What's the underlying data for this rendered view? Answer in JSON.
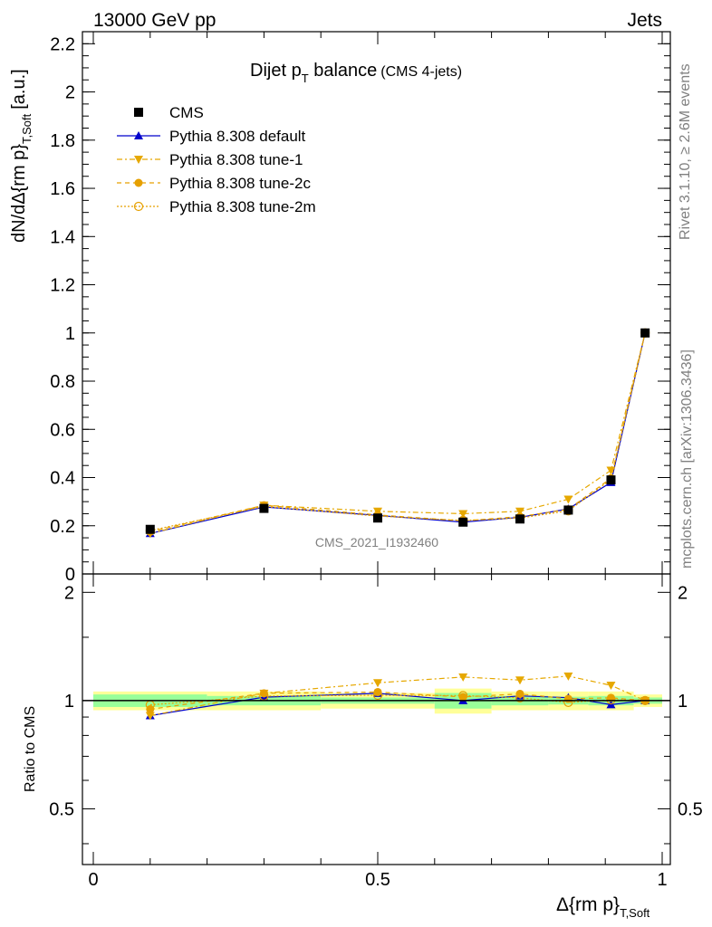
{
  "header": {
    "left": "13000 GeV pp",
    "right": "Jets",
    "side_top": "Rivet 3.1.10, ≥ 2.6M events",
    "side_bottom": "mcplots.cern.ch [arXiv:1306.3436]",
    "watermark": "CMS_2021_I1932460"
  },
  "chart_data": {
    "type": "line",
    "title_main": "Dijet p",
    "title_sub": "T",
    "title_rest": " balance",
    "title_note": "(CMS 4-jets)",
    "xlabel_main": "Δ{rm p}",
    "xlabel_sub": "T,Soft",
    "ylabel_main": "dN/dΔ{rm p}",
    "ylabel_sub": "T,Soft",
    "ylabel_unit": "[a.u.]",
    "ratio_ylabel": "Ratio to CMS",
    "xlim": [
      0,
      1
    ],
    "ylim": [
      0,
      2.25
    ],
    "ratio_ylim": [
      0.35,
      2.25
    ],
    "x_ticks": [
      0,
      0.5,
      1
    ],
    "x_tick_labels": [
      "0",
      "0.5",
      "1"
    ],
    "y_ticks": [
      0,
      0.2,
      0.4,
      0.6,
      0.8,
      1,
      1.2,
      1.4,
      1.6,
      1.8,
      2,
      2.2
    ],
    "y_tick_labels": [
      "0",
      "0.2",
      "0.4",
      "0.6",
      "0.8",
      "1",
      "1.2",
      "1.4",
      "1.6",
      "1.8",
      "2",
      "2.2"
    ],
    "ratio_ticks": [
      0.5,
      1,
      2
    ],
    "ratio_tick_labels": [
      "0.5",
      "1",
      "2"
    ],
    "legend_position": "top-left",
    "x": [
      0.1,
      0.3,
      0.5,
      0.65,
      0.75,
      0.835,
      0.91,
      0.97
    ],
    "bins": [
      [
        0,
        0.2
      ],
      [
        0.2,
        0.4
      ],
      [
        0.4,
        0.6
      ],
      [
        0.6,
        0.7
      ],
      [
        0.7,
        0.8
      ],
      [
        0.8,
        0.87
      ],
      [
        0.87,
        0.95
      ],
      [
        0.95,
        1.0
      ]
    ],
    "ratio_band_inner": [
      0.04,
      0.03,
      0.02,
      0.05,
      0.03,
      0.025,
      0.03,
      0.02
    ],
    "ratio_band_outer": [
      0.06,
      0.06,
      0.05,
      0.08,
      0.06,
      0.06,
      0.06,
      0.04
    ],
    "series": [
      {
        "name": "CMS",
        "color": "#000000",
        "marker": "square",
        "dash": "",
        "values": [
          0.185,
          0.272,
          0.232,
          0.215,
          0.228,
          0.265,
          0.39,
          1.0
        ]
      },
      {
        "name": "Pythia 8.308 default",
        "color": "#0000cc",
        "marker": "triangle-up",
        "dash": "",
        "values": [
          0.168,
          0.278,
          0.243,
          0.215,
          0.235,
          0.27,
          0.38,
          1.0
        ]
      },
      {
        "name": "Pythia 8.308 tune-1",
        "color": "#e6a800",
        "marker": "triangle-down",
        "dash": "6,3,2,3",
        "values": [
          0.168,
          0.285,
          0.26,
          0.25,
          0.26,
          0.31,
          0.43,
          1.0
        ]
      },
      {
        "name": "Pythia 8.308 tune-2c",
        "color": "#e6a000",
        "marker": "circle",
        "dash": "5,4",
        "values": [
          0.175,
          0.285,
          0.245,
          0.22,
          0.238,
          0.268,
          0.397,
          1.0
        ]
      },
      {
        "name": "Pythia 8.308 tune-2m",
        "color": "#e6a000",
        "marker": "circle-open",
        "dash": "2,2",
        "values": [
          0.18,
          0.28,
          0.24,
          0.222,
          0.232,
          0.262,
          0.392,
          1.0
        ]
      }
    ]
  }
}
